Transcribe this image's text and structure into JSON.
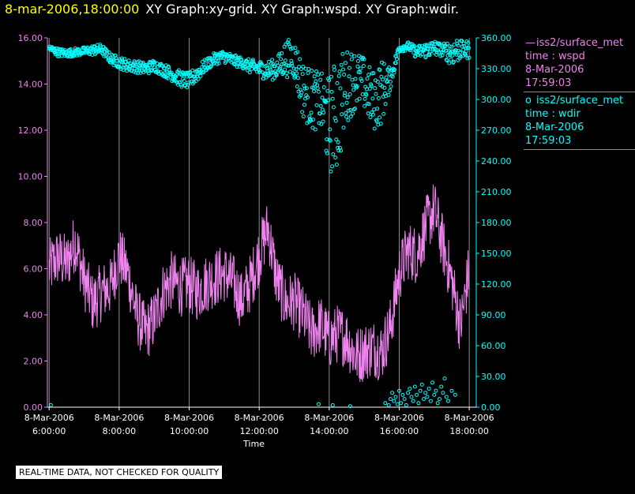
{
  "header": {
    "timestamp": "8-mar-2006,18:00:00",
    "titles": "XY Graph:xy-grid.  XY Graph:wspd.  XY Graph:wdir."
  },
  "legend": [
    {
      "name": "iss2/surface_met",
      "var": "time : wspd",
      "date": "8-Mar-2006",
      "time": "17:59:03",
      "color": "#ee82ee",
      "marker": "line"
    },
    {
      "name": "iss2/surface_met",
      "var": "time : wdir",
      "date": "8-Mar-2006",
      "time": "17:59:03",
      "color": "#00ffff",
      "marker": "circle"
    }
  ],
  "disclaimer": "REAL-TIME DATA, NOT CHECKED FOR QUALITY",
  "chart_data": {
    "type": "line",
    "xlabel": "Time",
    "x_ticks": [
      {
        "date": "8-Mar-2006",
        "time": "6:00:00",
        "hour": 6
      },
      {
        "date": "8-Mar-2006",
        "time": "8:00:00",
        "hour": 8
      },
      {
        "date": "8-Mar-2006",
        "time": "10:00:00",
        "hour": 10
      },
      {
        "date": "8-Mar-2006",
        "time": "12:00:00",
        "hour": 12
      },
      {
        "date": "8-Mar-2006",
        "time": "14:00:00",
        "hour": 14
      },
      {
        "date": "8-Mar-2006",
        "time": "16:00:00",
        "hour": 16
      },
      {
        "date": "8-Mar-2006",
        "time": "18:00:00",
        "hour": 18
      }
    ],
    "xlim": [
      5.95,
      18.2
    ],
    "left_axis": {
      "ylim": [
        0,
        16
      ],
      "ticks": [
        "0.00",
        "2.00",
        "4.00",
        "6.00",
        "8.00",
        "10.00",
        "12.00",
        "14.00",
        "16.00"
      ],
      "color": "#ee82ee"
    },
    "right_axis": {
      "ylim": [
        0,
        360
      ],
      "ticks": [
        "0.00",
        "30.00",
        "60.00",
        "90.00",
        "120.00",
        "150.00",
        "180.00",
        "210.00",
        "240.00",
        "270.00",
        "300.00",
        "330.00",
        "360.00"
      ],
      "color": "#00ffff"
    },
    "grid": "vertical",
    "series": [
      {
        "axis": "left",
        "style": "line",
        "color": "#ee82ee",
        "x": [
          6.0,
          6.25,
          6.5,
          6.75,
          7.0,
          7.25,
          7.5,
          7.75,
          8.0,
          8.25,
          8.5,
          8.75,
          9.0,
          9.25,
          9.5,
          9.75,
          10.0,
          10.25,
          10.5,
          10.75,
          11.0,
          11.25,
          11.5,
          11.75,
          12.0,
          12.25,
          12.5,
          12.75,
          13.0,
          13.25,
          13.5,
          13.75,
          14.0,
          14.25,
          14.5,
          14.75,
          15.0,
          15.25,
          15.5,
          15.75,
          16.0,
          16.25,
          16.5,
          16.75,
          17.0,
          17.25,
          17.5,
          17.75,
          18.0
        ],
        "values": [
          6.0,
          6.5,
          6.2,
          7.2,
          5.5,
          4.5,
          5.0,
          5.2,
          6.6,
          5.8,
          4.0,
          3.2,
          3.8,
          5.0,
          5.5,
          5.2,
          5.3,
          5.0,
          5.4,
          5.6,
          5.8,
          5.4,
          4.6,
          5.4,
          6.6,
          7.8,
          5.5,
          4.5,
          4.6,
          4.0,
          3.2,
          3.6,
          2.9,
          3.2,
          3.0,
          2.2,
          2.4,
          2.6,
          2.4,
          3.5,
          5.8,
          6.8,
          6.6,
          7.8,
          8.6,
          7.0,
          5.5,
          3.5,
          6.0
        ]
      },
      {
        "axis": "right",
        "style": "markers",
        "color": "#00ffff",
        "x": [
          6.0,
          6.25,
          6.5,
          6.75,
          7.0,
          7.25,
          7.5,
          7.75,
          8.0,
          8.25,
          8.5,
          8.75,
          9.0,
          9.25,
          9.5,
          9.75,
          10.0,
          10.25,
          10.5,
          10.75,
          11.0,
          11.25,
          11.5,
          11.75,
          12.0,
          12.25,
          12.5,
          12.75,
          13.0,
          13.25,
          13.5,
          13.75,
          14.0,
          14.25,
          14.5,
          14.75,
          15.0,
          15.25,
          15.5,
          15.75,
          16.0,
          16.25,
          16.5,
          16.75,
          17.0,
          17.25,
          17.5,
          17.75,
          18.0
        ],
        "values": [
          350,
          346,
          345,
          346,
          347,
          348,
          349,
          340,
          336,
          333,
          332,
          330,
          333,
          329,
          325,
          320,
          318,
          326,
          334,
          340,
          342,
          338,
          336,
          332,
          330,
          328,
          330,
          340,
          340,
          310,
          300,
          298,
          275,
          288,
          313,
          320,
          315,
          298,
          308,
          320,
          350,
          352,
          346,
          348,
          350,
          348,
          346,
          350,
          348
        ],
        "scatter_band": [
          3,
          4,
          4,
          4,
          4,
          5,
          5,
          5,
          6,
          6,
          6,
          6,
          6,
          6,
          7,
          8,
          8,
          8,
          6,
          6,
          6,
          6,
          5,
          7,
          8,
          10,
          10,
          18,
          20,
          28,
          30,
          28,
          48,
          58,
          36,
          30,
          26,
          30,
          32,
          10,
          4,
          4,
          6,
          8,
          8,
          6,
          14,
          12,
          8
        ],
        "low_cluster": {
          "x": [
            6.05,
            13.7,
            14.1,
            14.6,
            15.6,
            15.7,
            15.75,
            15.8,
            15.85,
            15.9,
            15.95,
            16.0,
            16.05,
            16.1,
            16.15,
            16.2,
            16.25,
            16.3,
            16.35,
            16.4,
            16.45,
            16.5,
            16.55,
            16.6,
            16.65,
            16.7,
            16.75,
            16.8,
            16.85,
            16.9,
            16.95,
            17.0,
            17.05,
            17.1,
            17.15,
            17.2,
            17.25,
            17.3,
            17.35,
            17.4,
            17.5,
            17.6
          ],
          "values": [
            2,
            3,
            2,
            1,
            4,
            2,
            8,
            14,
            6,
            10,
            3,
            16,
            4,
            12,
            8,
            2,
            14,
            18,
            10,
            6,
            20,
            12,
            4,
            16,
            22,
            8,
            14,
            10,
            18,
            6,
            24,
            12,
            16,
            4,
            8,
            20,
            14,
            28,
            10,
            6,
            16,
            12
          ]
        }
      }
    ]
  }
}
